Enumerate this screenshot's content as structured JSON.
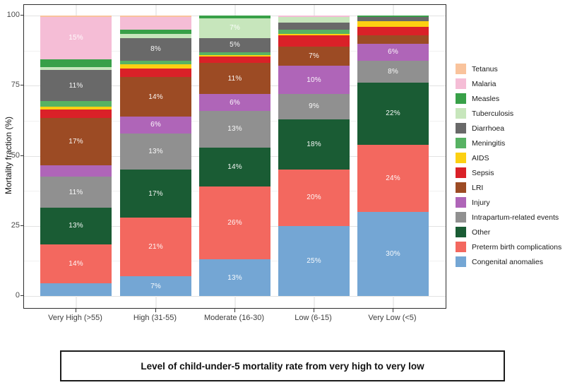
{
  "caption": {
    "text": "Level of child-under-5 mortality rate from very high to very low"
  },
  "chart_data": {
    "type": "bar",
    "stacked": true,
    "title": "",
    "xlabel": "",
    "ylabel": "Mortality fraction (%)",
    "ylim": [
      0,
      100
    ],
    "yticks": [
      0,
      25,
      50,
      75,
      100
    ],
    "yticks_minor": [
      12.5,
      37.5,
      62.5,
      87.5
    ],
    "grid": true,
    "legend_position": "right",
    "label_rule": "segments >= 5% show value as 'N%' in white text",
    "categories": [
      "Very High (>55)",
      "High (31-55)",
      "Moderate (16-30)",
      "Low (6-15)",
      "Very Low (<5)"
    ],
    "series": [
      {
        "name": "Tetanus",
        "color": "#f9c39c",
        "values": [
          0.5,
          0.5,
          0,
          0,
          0
        ]
      },
      {
        "name": "Malaria",
        "color": "#f5bdd6",
        "values": [
          15,
          4.5,
          0,
          0.5,
          0
        ]
      },
      {
        "name": "Measles",
        "color": "#38a048",
        "values": [
          3,
          1.5,
          1,
          0,
          0.5
        ]
      },
      {
        "name": "Tuberculosis",
        "color": "#c7e6bc",
        "values": [
          1,
          1.5,
          7,
          2,
          0
        ]
      },
      {
        "name": "Diarrhoea",
        "color": "#696969",
        "values": [
          11,
          8,
          5,
          2.5,
          1.5
        ]
      },
      {
        "name": "Meningitis",
        "color": "#57b263",
        "values": [
          2,
          1.5,
          1,
          1.5,
          0
        ]
      },
      {
        "name": "AIDS",
        "color": "#fcd012",
        "values": [
          1,
          1.5,
          0.5,
          0.5,
          2
        ]
      },
      {
        "name": "Sepsis",
        "color": "#da2128",
        "values": [
          3,
          3,
          2.5,
          4,
          3
        ]
      },
      {
        "name": "LRI",
        "color": "#9c4b24",
        "values": [
          17,
          14,
          11,
          7,
          3
        ]
      },
      {
        "name": "Injury",
        "color": "#af65b8",
        "values": [
          4,
          6,
          6,
          10,
          6
        ]
      },
      {
        "name": "Intrapartum-related events",
        "color": "#909090",
        "values": [
          11,
          13,
          13,
          9,
          8
        ]
      },
      {
        "name": "Other",
        "color": "#1a5c34",
        "values": [
          13,
          17,
          14,
          18,
          22
        ]
      },
      {
        "name": "Preterm birth complications",
        "color": "#f3685f",
        "values": [
          14,
          21,
          26,
          20,
          24
        ]
      },
      {
        "name": "Congenital anomalies",
        "color": "#74a6d4",
        "values": [
          4.5,
          7,
          13,
          25,
          30
        ]
      }
    ]
  }
}
